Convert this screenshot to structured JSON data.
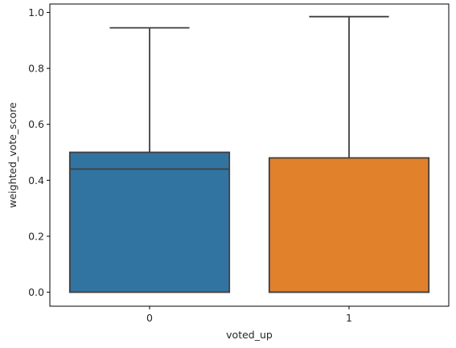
{
  "chart_data": {
    "type": "box",
    "title": "",
    "xlabel": "voted_up",
    "ylabel": "weighted_vote_score",
    "categories": [
      "0",
      "1"
    ],
    "ylim": [
      -0.05,
      1.03
    ],
    "yticks": [
      0.0,
      0.2,
      0.4,
      0.6,
      0.8,
      1.0
    ],
    "ytick_labels": [
      "0.0",
      "0.2",
      "0.4",
      "0.6",
      "0.8",
      "1.0"
    ],
    "grid": false,
    "boxes": [
      {
        "category": "0",
        "whisker_low": 0.0,
        "q1": 0.0,
        "median": 0.44,
        "q3": 0.5,
        "whisker_high": 0.945,
        "color": "#3274a1"
      },
      {
        "category": "1",
        "whisker_low": 0.0,
        "q1": 0.0,
        "median": 0.0,
        "q3": 0.48,
        "whisker_high": 0.985,
        "color": "#e1812c"
      }
    ]
  }
}
